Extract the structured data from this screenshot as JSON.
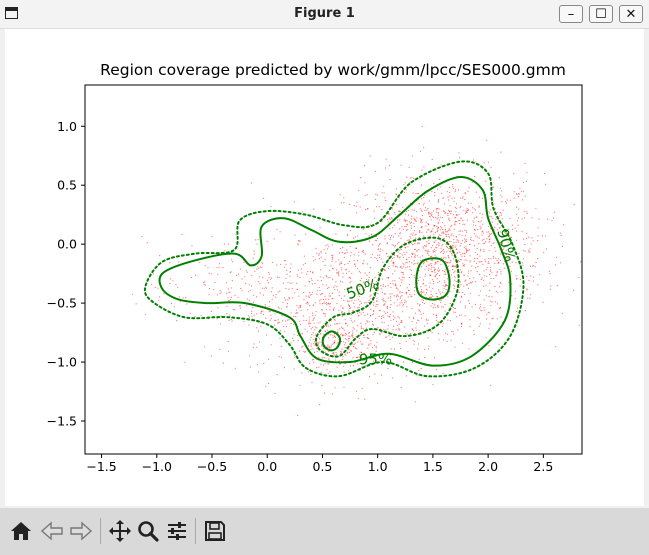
{
  "window": {
    "title": "Figure 1",
    "minimize": "–",
    "maximize": "☐",
    "close": "✕"
  },
  "toolbar": {
    "items": [
      {
        "name": "home-icon"
      },
      {
        "name": "back-arrow-icon"
      },
      {
        "name": "forward-arrow-icon"
      },
      {
        "name": "pan-icon"
      },
      {
        "name": "zoom-icon"
      },
      {
        "name": "configure-subplots-icon"
      },
      {
        "name": "save-icon"
      }
    ]
  },
  "colors": {
    "contour": "#008000",
    "points": "#ff0000",
    "toolbar_bg": "#d9d9d9"
  },
  "chart_data": {
    "type": "scatter",
    "title": "Region coverage predicted by work/gmm/lpcc/SES000.gmm",
    "xlabel": "",
    "ylabel": "",
    "xlim": [
      -1.65,
      2.85
    ],
    "ylim": [
      -1.78,
      1.35
    ],
    "x_ticks": [
      -1.5,
      -1.0,
      -0.5,
      0.0,
      0.5,
      1.0,
      1.5,
      2.0,
      2.5
    ],
    "x_tick_labels": [
      "−1.5",
      "−1.0",
      "−0.5",
      "0.0",
      "0.5",
      "1.0",
      "1.5",
      "2.0",
      "2.5"
    ],
    "y_ticks": [
      1.0,
      0.5,
      0.0,
      -0.5,
      -1.0,
      -1.5
    ],
    "y_tick_labels": [
      "1.0",
      "0.5",
      "0.0",
      "−0.5",
      "−1.0",
      "−1.5"
    ],
    "grid": false,
    "scatter_clusters": [
      {
        "center": [
          1.6,
          -0.05
        ],
        "spread": [
          0.45,
          0.32
        ],
        "weight": 0.55
      },
      {
        "center": [
          0.75,
          -0.55
        ],
        "spread": [
          0.45,
          0.3
        ],
        "weight": 0.28
      },
      {
        "center": [
          -0.2,
          -0.4
        ],
        "spread": [
          0.45,
          0.22
        ],
        "weight": 0.1
      },
      {
        "center": [
          0.6,
          -0.85
        ],
        "spread": [
          0.15,
          0.12
        ],
        "weight": 0.07
      }
    ],
    "contours": [
      {
        "label": "95%",
        "style": "solid",
        "label_at": [
          0.98,
          -1.02
        ],
        "points": [
          [
            -0.95,
            -0.25
          ],
          [
            -0.7,
            -0.15
          ],
          [
            -0.3,
            -0.08
          ],
          [
            -0.15,
            -0.18
          ],
          [
            -0.05,
            -0.1
          ],
          [
            -0.05,
            0.15
          ],
          [
            0.15,
            0.22
          ],
          [
            0.4,
            0.12
          ],
          [
            0.65,
            0.02
          ],
          [
            0.95,
            0.06
          ],
          [
            1.2,
            0.25
          ],
          [
            1.45,
            0.45
          ],
          [
            1.75,
            0.57
          ],
          [
            1.95,
            0.46
          ],
          [
            2.0,
            0.22
          ],
          [
            2.12,
            -0.05
          ],
          [
            2.2,
            -0.3
          ],
          [
            2.15,
            -0.65
          ],
          [
            1.85,
            -0.95
          ],
          [
            1.5,
            -1.03
          ],
          [
            1.1,
            -0.93
          ],
          [
            0.75,
            -1.0
          ],
          [
            0.45,
            -0.97
          ],
          [
            0.3,
            -0.78
          ],
          [
            0.2,
            -0.62
          ],
          [
            -0.2,
            -0.5
          ],
          [
            -0.55,
            -0.5
          ],
          [
            -0.8,
            -0.47
          ],
          [
            -0.95,
            -0.38
          ]
        ]
      },
      {
        "label": "90%",
        "style": "dotted",
        "label_at": [
          2.12,
          -0.02
        ],
        "points": [
          [
            -1.1,
            -0.35
          ],
          [
            -0.95,
            -0.15
          ],
          [
            -0.65,
            -0.08
          ],
          [
            -0.3,
            -0.05
          ],
          [
            -0.25,
            0.2
          ],
          [
            0.0,
            0.28
          ],
          [
            0.35,
            0.25
          ],
          [
            0.7,
            0.16
          ],
          [
            1.0,
            0.18
          ],
          [
            1.3,
            0.52
          ],
          [
            1.75,
            0.7
          ],
          [
            2.0,
            0.6
          ],
          [
            2.05,
            0.3
          ],
          [
            2.22,
            0.0
          ],
          [
            2.32,
            -0.35
          ],
          [
            2.2,
            -0.78
          ],
          [
            1.88,
            -1.05
          ],
          [
            1.45,
            -1.12
          ],
          [
            1.05,
            -1.0
          ],
          [
            0.65,
            -1.12
          ],
          [
            0.35,
            -1.05
          ],
          [
            0.2,
            -0.85
          ],
          [
            0.0,
            -0.68
          ],
          [
            -0.35,
            -0.62
          ],
          [
            -0.75,
            -0.62
          ],
          [
            -1.05,
            -0.48
          ]
        ]
      },
      {
        "label": "50%",
        "style": "dotted",
        "label_at": [
          0.88,
          -0.42
        ],
        "points": [
          [
            0.45,
            -0.78
          ],
          [
            0.6,
            -0.62
          ],
          [
            0.78,
            -0.58
          ],
          [
            0.95,
            -0.48
          ],
          [
            1.05,
            -0.2
          ],
          [
            1.25,
            0.0
          ],
          [
            1.55,
            0.05
          ],
          [
            1.7,
            -0.1
          ],
          [
            1.72,
            -0.4
          ],
          [
            1.55,
            -0.68
          ],
          [
            1.25,
            -0.78
          ],
          [
            0.95,
            -0.72
          ],
          [
            0.8,
            -0.8
          ],
          [
            0.65,
            -0.95
          ],
          [
            0.48,
            -0.9
          ]
        ]
      },
      {
        "label": "",
        "style": "solid",
        "label_at": [
          1.5,
          -0.3
        ],
        "points": [
          [
            1.5,
            -0.12
          ],
          [
            1.6,
            -0.15
          ],
          [
            1.65,
            -0.3
          ],
          [
            1.62,
            -0.43
          ],
          [
            1.5,
            -0.47
          ],
          [
            1.38,
            -0.43
          ],
          [
            1.35,
            -0.3
          ],
          [
            1.39,
            -0.16
          ]
        ]
      },
      {
        "label": "",
        "style": "solid",
        "label_at": [
          0.58,
          -0.82
        ],
        "points": [
          [
            0.58,
            -0.74
          ],
          [
            0.64,
            -0.77
          ],
          [
            0.66,
            -0.82
          ],
          [
            0.63,
            -0.88
          ],
          [
            0.57,
            -0.9
          ],
          [
            0.51,
            -0.86
          ],
          [
            0.51,
            -0.79
          ]
        ]
      }
    ]
  }
}
